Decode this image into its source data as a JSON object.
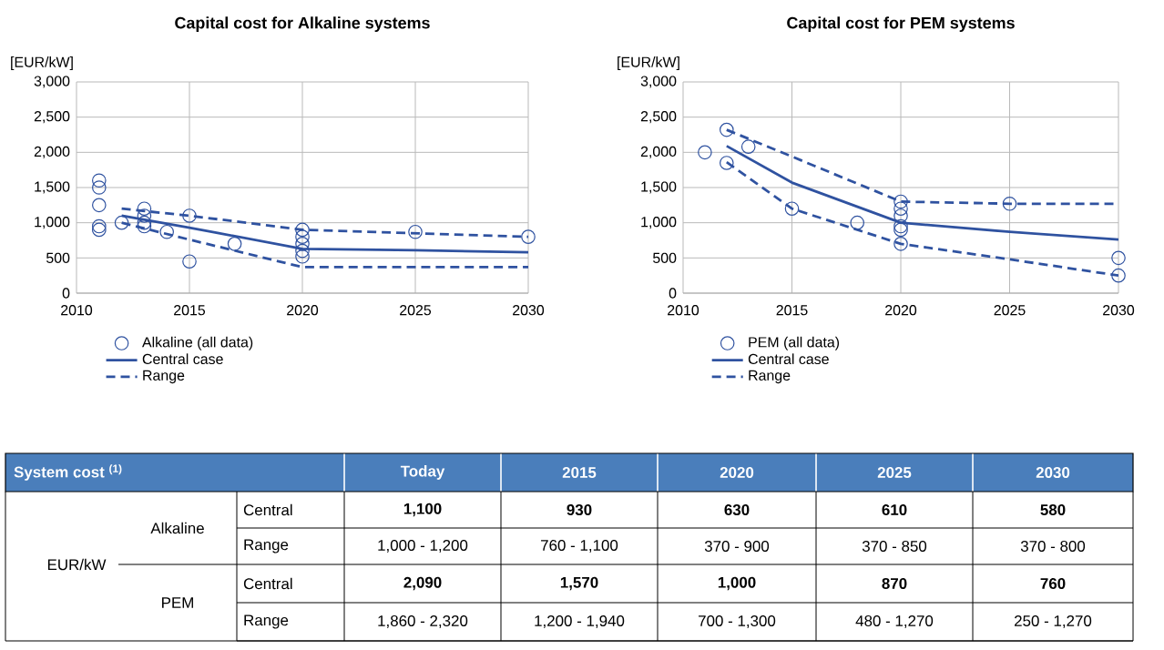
{
  "chart_data": [
    {
      "type": "scatter",
      "title": "Capital cost for Alkaline systems",
      "ylabel": "[EUR/kW]",
      "xlim": [
        2010,
        2030
      ],
      "ylim": [
        0,
        3000
      ],
      "xticks": [
        2010,
        2015,
        2020,
        2025,
        2030
      ],
      "yticks": [
        {
          "value": 0,
          "label": "0"
        },
        {
          "value": 500,
          "label": "500"
        },
        {
          "value": 1000,
          "label": "1,000"
        },
        {
          "value": 1500,
          "label": "1,500"
        },
        {
          "value": 2000,
          "label": "2,000"
        },
        {
          "value": 2500,
          "label": "2,500"
        },
        {
          "value": 3000,
          "label": "3,000"
        }
      ],
      "grid": true,
      "legend": "bottom",
      "series": [
        {
          "type": "scatter",
          "name": "Alkaline (all data)",
          "color": "#2f52a0",
          "marker": "circle",
          "x": [
            2011,
            2011,
            2011,
            2011,
            2011,
            2012,
            2013,
            2013,
            2013,
            2013,
            2014,
            2015,
            2015,
            2017,
            2020,
            2020,
            2020,
            2020,
            2020,
            2025,
            2030
          ],
          "values": [
            1600,
            1500,
            1250,
            950,
            900,
            1000,
            1200,
            1100,
            1000,
            950,
            870,
            1100,
            450,
            700,
            900,
            800,
            700,
            600,
            520,
            870,
            800
          ]
        },
        {
          "type": "line",
          "name": "Central case",
          "color": "#2f52a0",
          "line_style": "solid",
          "x": [
            2012,
            2015,
            2020,
            2025,
            2030
          ],
          "values": [
            1100,
            930,
            630,
            610,
            580
          ]
        },
        {
          "type": "line",
          "name": "Range",
          "color": "#2f52a0",
          "line_style": "dashed",
          "x": [
            2012,
            2015,
            2020,
            2025,
            2030
          ],
          "values": [
            1200,
            1100,
            900,
            850,
            800
          ]
        },
        {
          "type": "line",
          "color": "#2f52a0",
          "line_style": "dashed",
          "x": [
            2012,
            2015,
            2020,
            2025,
            2030
          ],
          "values": [
            1000,
            760,
            370,
            370,
            370
          ]
        }
      ]
    },
    {
      "type": "scatter",
      "title": "Capital cost for PEM systems",
      "ylabel": "[EUR/kW]",
      "xlim": [
        2010,
        2030
      ],
      "ylim": [
        0,
        3000
      ],
      "xticks": [
        2010,
        2015,
        2020,
        2025,
        2030
      ],
      "yticks": [
        {
          "value": 0,
          "label": "0"
        },
        {
          "value": 500,
          "label": "500"
        },
        {
          "value": 1000,
          "label": "1,000"
        },
        {
          "value": 1500,
          "label": "1,500"
        },
        {
          "value": 2000,
          "label": "2,000"
        },
        {
          "value": 2500,
          "label": "2,500"
        },
        {
          "value": 3000,
          "label": "3,000"
        }
      ],
      "grid": true,
      "legend": "bottom",
      "series": [
        {
          "type": "scatter",
          "name": "PEM (all data)",
          "color": "#2f52a0",
          "marker": "circle",
          "x": [
            2011,
            2012,
            2012,
            2013,
            2015,
            2018,
            2020,
            2020,
            2020,
            2020,
            2020,
            2020,
            2025,
            2030,
            2030
          ],
          "values": [
            2000,
            2320,
            1850,
            2080,
            1200,
            1000,
            1300,
            1200,
            1100,
            950,
            900,
            700,
            1270,
            500,
            250
          ]
        },
        {
          "type": "line",
          "name": "Central case",
          "color": "#2f52a0",
          "line_style": "solid",
          "x": [
            2012,
            2015,
            2020,
            2025,
            2030
          ],
          "values": [
            2090,
            1570,
            1000,
            870,
            760
          ]
        },
        {
          "type": "line",
          "name": "Range",
          "color": "#2f52a0",
          "line_style": "dashed",
          "x": [
            2012,
            2015,
            2020,
            2025,
            2030
          ],
          "values": [
            2320,
            1940,
            1300,
            1270,
            1270
          ]
        },
        {
          "type": "line",
          "color": "#2f52a0",
          "line_style": "dashed",
          "x": [
            2012,
            2015,
            2020,
            2025,
            2030
          ],
          "values": [
            1860,
            1200,
            700,
            480,
            250
          ]
        }
      ]
    },
    {
      "type": "heatmap",
      "ylabel": "System cost $^{(1)}$",
      "cells": [
        [
          null,
          null,
          null,
          null,
          null
        ],
        [
          null,
          null,
          null,
          null,
          null
        ],
        [
          null,
          null,
          null,
          null,
          null
        ],
        [
          null,
          null,
          null,
          null,
          null
        ]
      ],
      "categories": [
        "Today",
        "2015",
        "2020",
        "2025",
        "2030"
      ],
      "y_categories": [
        "Central",
        "Range",
        "Central",
        "Range"
      ],
      "cell_labels": [
        [
          "1,100",
          "930",
          "630",
          "610",
          "580"
        ],
        [
          "1,000 - 1,200",
          "760 - 1,100",
          "370 - 900",
          "370 - 850",
          "370 - 800"
        ],
        [
          "2,090",
          "1,570",
          "1,000",
          "870",
          "760"
        ],
        [
          "1,860 - 2,320",
          "1,200 - 1,940",
          "700 - 1,300",
          "480 - 1,270",
          "250 - 1,270"
        ]
      ],
      "annotations": [
        "EUR/kW",
        "Alkaline",
        "PEM"
      ]
    }
  ]
}
